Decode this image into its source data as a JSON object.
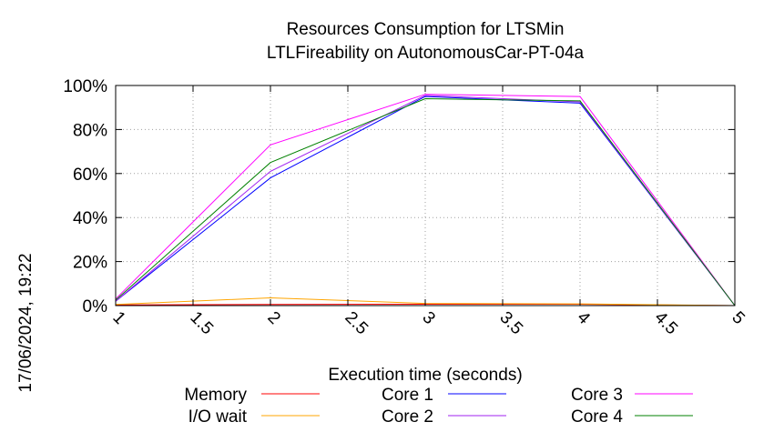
{
  "chart_data": {
    "type": "line",
    "title": "Resources Consumption for LTSMin",
    "subtitle": "LTLFireability on AutonomousCar-PT-04a",
    "xlabel": "Execution time (seconds)",
    "ylabel": "",
    "xlim": [
      1,
      5
    ],
    "ylim": [
      0,
      100
    ],
    "x_ticks": [
      "1",
      "1.5",
      "2",
      "2.5",
      "3",
      "3.5",
      "4",
      "4.5",
      "5"
    ],
    "y_ticks": [
      "0%",
      "20%",
      "40%",
      "60%",
      "80%",
      "100%"
    ],
    "grid": true,
    "legend_position": "bottom",
    "timestamp": "17/06/2024, 19:22",
    "series": [
      {
        "name": "Memory",
        "color": "#ff0000",
        "x": [
          1,
          2,
          3,
          4,
          5
        ],
        "y": [
          0.3,
          0.5,
          0.6,
          0.6,
          0
        ]
      },
      {
        "name": "I/O wait",
        "color": "#ffa500",
        "x": [
          1,
          2,
          3,
          4,
          5
        ],
        "y": [
          0.5,
          3.5,
          1,
          0.8,
          0
        ]
      },
      {
        "name": "Core 1",
        "color": "#0000ff",
        "x": [
          1,
          2,
          3,
          4,
          5
        ],
        "y": [
          2,
          58,
          95,
          92,
          0
        ]
      },
      {
        "name": "Core 2",
        "color": "#a020f0",
        "x": [
          1,
          2,
          3,
          4,
          5
        ],
        "y": [
          2,
          61,
          95.5,
          92.5,
          0
        ]
      },
      {
        "name": "Core 3",
        "color": "#ff00ff",
        "x": [
          1,
          2,
          3,
          4,
          5
        ],
        "y": [
          3,
          73,
          96,
          95,
          0
        ]
      },
      {
        "name": "Core 4",
        "color": "#008000",
        "x": [
          1,
          2,
          3,
          4,
          5
        ],
        "y": [
          2.5,
          65,
          94,
          93,
          0
        ]
      }
    ]
  }
}
